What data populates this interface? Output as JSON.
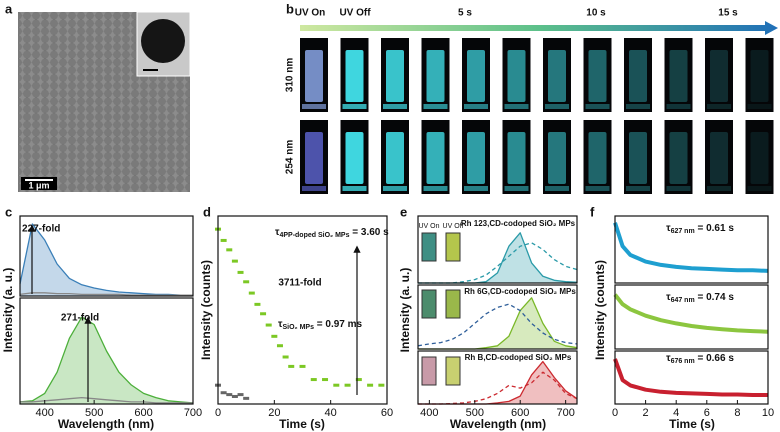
{
  "figure": {
    "panel_a": {
      "label": "a",
      "scale_bar": "1 μm"
    },
    "panel_b": {
      "label": "b",
      "timeline": [
        "UV On",
        "UV Off",
        "5 s",
        "10 s",
        "15 s"
      ],
      "rows": [
        "310 nm",
        "254 nm"
      ]
    },
    "panel_e_insets": {
      "on": "UV On",
      "off": "UV Off"
    }
  },
  "chart_data": [
    {
      "type": "line",
      "panel": "c",
      "ylabel": "Intensity (a. u.)",
      "annotation": "227-fold",
      "x": [
        350,
        375,
        400,
        425,
        450,
        475,
        500,
        525,
        550,
        575,
        600,
        625,
        650,
        675,
        700
      ],
      "xlim": [
        350,
        700
      ],
      "ylim": [
        0,
        1
      ],
      "series": [
        {
          "color": "#3a7fb8",
          "fill": true,
          "values": [
            0.15,
            0.9,
            0.7,
            0.4,
            0.22,
            0.14,
            0.1,
            0.07,
            0.05,
            0.04,
            0.03,
            0.02,
            0.02,
            0.01,
            0.01
          ]
        },
        {
          "color": "#888888",
          "fill": false,
          "values": [
            0.02,
            0.04,
            0.04,
            0.03,
            0.03,
            0.02,
            0.02,
            0.02,
            0.02,
            0.01,
            0.01,
            0.01,
            0.01,
            0.01,
            0.01
          ]
        }
      ]
    },
    {
      "type": "line",
      "xlabel": "Wavelength (nm)",
      "annotation": "271-fold",
      "x": [
        350,
        375,
        400,
        425,
        450,
        475,
        500,
        525,
        550,
        575,
        600,
        625,
        650,
        675,
        700
      ],
      "xlim": [
        350,
        700
      ],
      "ylim": [
        0,
        1
      ],
      "xticks": [
        400,
        500,
        600,
        700
      ],
      "series": [
        {
          "color": "#4caf3a",
          "fill": true,
          "values": [
            0.02,
            0.03,
            0.1,
            0.3,
            0.62,
            0.82,
            0.75,
            0.5,
            0.3,
            0.18,
            0.1,
            0.06,
            0.03,
            0.02,
            0.01
          ]
        },
        {
          "color": "#888888",
          "fill": false,
          "values": [
            0.02,
            0.02,
            0.03,
            0.04,
            0.05,
            0.06,
            0.05,
            0.04,
            0.03,
            0.02,
            0.02,
            0.01,
            0.01,
            0.01,
            0.01
          ]
        }
      ]
    },
    {
      "type": "scatter",
      "panel": "d",
      "ylabel": "Intensity (counts)",
      "xlabel": "Time (s)",
      "annotation": {
        "main": "τ",
        "sub": "4PP-doped SiO₂ MPs",
        "rest": " = 3.60 s"
      },
      "annotation2": "3711-fold",
      "annotation3": {
        "main": "τ",
        "sub": "SiO₂ MPs",
        "rest": " = 0.97 ms"
      },
      "x": [
        0,
        2,
        4,
        6,
        8,
        10,
        12,
        14,
        16,
        18,
        20,
        22,
        24,
        26,
        30,
        34,
        38,
        42,
        46,
        50,
        54,
        58
      ],
      "xlim": [
        0,
        60
      ],
      "ylim": [
        0,
        1
      ],
      "xticks": [
        0,
        20,
        40,
        60
      ],
      "series": [
        {
          "color": "#7cc824",
          "values": [
            0.93,
            0.87,
            0.82,
            0.76,
            0.7,
            0.65,
            0.59,
            0.53,
            0.48,
            0.42,
            0.36,
            0.31,
            0.25,
            0.2,
            0.2,
            0.13,
            0.13,
            0.1,
            0.1,
            0.13,
            0.1,
            0.1
          ]
        },
        {
          "color": "#666666",
          "values": [
            0.1,
            0.06,
            0.05,
            0.04,
            0.05,
            0.03,
            null,
            null,
            null,
            null,
            null,
            null,
            null,
            null,
            null,
            null,
            null,
            null,
            null,
            null,
            null,
            null
          ]
        }
      ]
    },
    {
      "type": "line",
      "panel": "e",
      "ylabel": "Intensity (a. u.)",
      "label": "Rh 123,CD-codoped SiO₂ MPs",
      "x": [
        375,
        400,
        425,
        450,
        475,
        500,
        525,
        550,
        575,
        600,
        625,
        650,
        675,
        700,
        725
      ],
      "xlim": [
        375,
        725
      ],
      "ylim": [
        0,
        1
      ],
      "series": [
        {
          "color": "#2a9aa8",
          "fill": true,
          "dash": false,
          "values": [
            0,
            0,
            0,
            0,
            0,
            0,
            0.02,
            0.15,
            0.55,
            0.75,
            0.3,
            0.1,
            0.04,
            0.02,
            0.01
          ]
        },
        {
          "color": "#2a9aa8",
          "fill": false,
          "dash": true,
          "values": [
            0,
            0,
            0,
            0,
            0.02,
            0.05,
            0.12,
            0.25,
            0.4,
            0.55,
            0.6,
            0.5,
            0.35,
            0.25,
            0.2
          ]
        }
      ]
    },
    {
      "type": "line",
      "label": "Rh 6G,CD-codoped SiO₂ MPs",
      "x": [
        375,
        400,
        425,
        450,
        475,
        500,
        525,
        550,
        575,
        600,
        625,
        650,
        675,
        700,
        725
      ],
      "xlim": [
        375,
        725
      ],
      "ylim": [
        0,
        1
      ],
      "series": [
        {
          "color": "#7ab828",
          "fill": true,
          "dash": false,
          "values": [
            0,
            0,
            0,
            0,
            0,
            0,
            0.02,
            0.05,
            0.2,
            0.6,
            0.8,
            0.4,
            0.12,
            0.05,
            0.02
          ]
        },
        {
          "color": "#2f5f9a",
          "fill": false,
          "dash": true,
          "values": [
            0.05,
            0.08,
            0.1,
            0.15,
            0.25,
            0.4,
            0.55,
            0.65,
            0.7,
            0.6,
            0.4,
            0.25,
            0.15,
            0.1,
            0.08
          ]
        }
      ]
    },
    {
      "type": "line",
      "label": "Rh B,CD-codoped SiO₂ MPs",
      "xlabel": "Wavelength (nm)",
      "x": [
        375,
        400,
        425,
        450,
        475,
        500,
        525,
        550,
        575,
        600,
        625,
        650,
        675,
        700,
        725
      ],
      "xlim": [
        375,
        725
      ],
      "ylim": [
        0,
        1
      ],
      "xticks": [
        400,
        500,
        600,
        700
      ],
      "series": [
        {
          "color": "#cc2a30",
          "fill": true,
          "dash": false,
          "values": [
            0,
            0,
            0,
            0,
            0,
            0,
            0,
            0.02,
            0.05,
            0.15,
            0.55,
            0.8,
            0.5,
            0.25,
            0.1
          ]
        },
        {
          "color": "#cc2a30",
          "fill": false,
          "dash": true,
          "values": [
            0,
            0,
            0,
            0.01,
            0.02,
            0.05,
            0.1,
            0.2,
            0.35,
            0.3,
            0.4,
            0.6,
            0.45,
            0.2,
            0.1
          ]
        }
      ]
    },
    {
      "type": "line",
      "panel": "f",
      "ylabel": "Intensity (counts)",
      "annotation": {
        "main": "τ",
        "sub": "627 nm",
        "rest": " = 0.61 s"
      },
      "x": [
        0,
        0.5,
        1,
        2,
        3,
        4,
        5,
        6,
        7,
        8,
        9,
        10
      ],
      "xlim": [
        0,
        10
      ],
      "ylim": [
        0,
        1
      ],
      "series": [
        {
          "color": "#1e9fd0",
          "values": [
            0.9,
            0.55,
            0.42,
            0.32,
            0.27,
            0.24,
            0.22,
            0.21,
            0.2,
            0.19,
            0.19,
            0.18
          ]
        }
      ]
    },
    {
      "type": "line",
      "annotation": {
        "main": "τ",
        "sub": "647 nm",
        "rest": " = 0.74 s"
      },
      "x": [
        0,
        0.5,
        1,
        2,
        3,
        4,
        5,
        6,
        7,
        8,
        9,
        10
      ],
      "xlim": [
        0,
        10
      ],
      "ylim": [
        0,
        1
      ],
      "series": [
        {
          "color": "#8cc63f",
          "values": [
            0.85,
            0.7,
            0.62,
            0.52,
            0.45,
            0.4,
            0.36,
            0.33,
            0.31,
            0.29,
            0.28,
            0.27
          ]
        }
      ]
    },
    {
      "type": "line",
      "xlabel": "Time (s)",
      "annotation": {
        "main": "τ",
        "sub": "676 nm",
        "rest": " = 0.66 s"
      },
      "x": [
        0,
        0.5,
        1,
        2,
        3,
        4,
        5,
        6,
        7,
        8,
        9,
        10
      ],
      "xlim": [
        0,
        10
      ],
      "ylim": [
        0,
        1
      ],
      "xticks": [
        0,
        2,
        4,
        6,
        8,
        10
      ],
      "series": [
        {
          "color": "#c8202f",
          "values": [
            0.85,
            0.45,
            0.35,
            0.27,
            0.23,
            0.21,
            0.2,
            0.19,
            0.18,
            0.18,
            0.17,
            0.17
          ]
        }
      ]
    }
  ]
}
